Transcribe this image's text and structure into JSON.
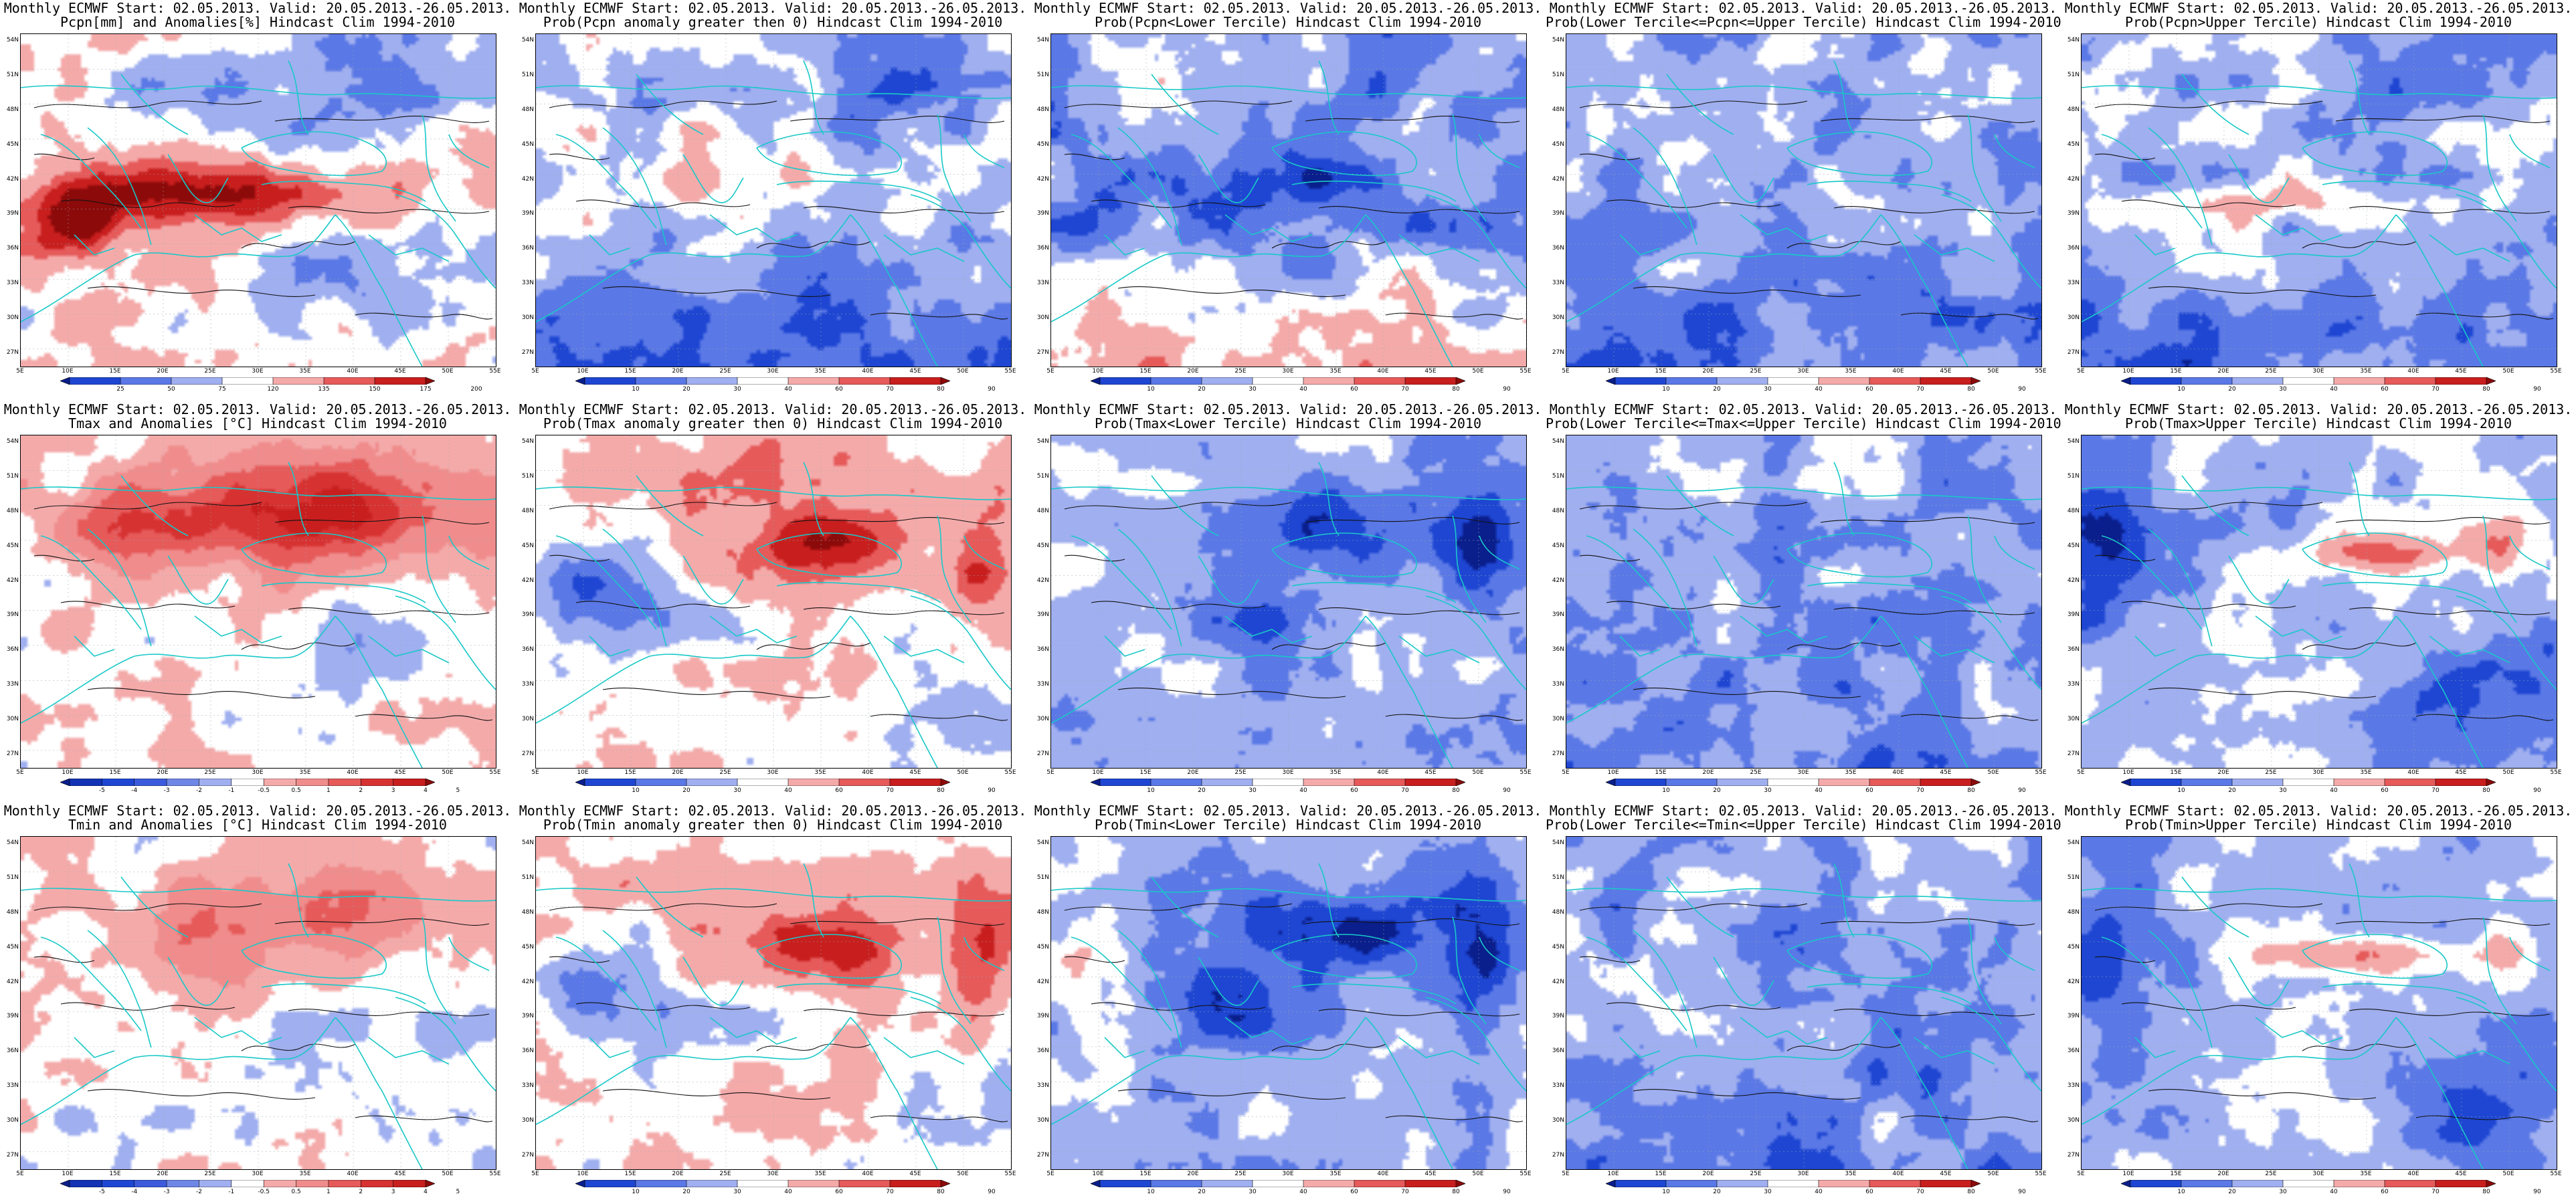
{
  "lat_labels": [
    "54N",
    "51N",
    "48N",
    "45N",
    "42N",
    "39N",
    "36N",
    "33N",
    "30N",
    "27N"
  ],
  "lon_labels": [
    "5E",
    "10E",
    "15E",
    "20E",
    "25E",
    "30E",
    "35E",
    "40E",
    "45E",
    "50E",
    "55E"
  ],
  "colorbars": {
    "pcpn_anom": {
      "labels": [
        "25",
        "50",
        "75",
        "120",
        "135",
        "150",
        "175",
        "200"
      ],
      "colors": [
        "#0a1e8c",
        "#1e46d2",
        "#5a78e6",
        "#a0aff0",
        "#ffffff",
        "#f5aaaa",
        "#e65a5a",
        "#c81e1e",
        "#8c0a0a"
      ]
    },
    "temp_anom": {
      "labels": [
        "-5",
        "-4",
        "-3",
        "-2",
        "-1",
        "-0.5",
        "0.5",
        "1",
        "2",
        "3",
        "4",
        "5"
      ],
      "colors": [
        "#0a1e8c",
        "#1432b4",
        "#1e46d2",
        "#3c5adc",
        "#6e87e6",
        "#a0aff0",
        "#ffffff",
        "#f5aaaa",
        "#f08c8c",
        "#e65a5a",
        "#d73232",
        "#c81e1e",
        "#8c0a0a"
      ]
    },
    "prob": {
      "labels": [
        "10",
        "20",
        "30",
        "40",
        "60",
        "70",
        "80",
        "90"
      ],
      "colors": [
        "#0a1e8c",
        "#1e46d2",
        "#5a78e6",
        "#a0aff0",
        "#ffffff",
        "#f5aaaa",
        "#e65a5a",
        "#c81e1e",
        "#8c0a0a"
      ]
    }
  },
  "panels": [
    {
      "title1": "Monthly ECMWF Start: 02.05.2013. Valid: 20.05.2013.-26.05.2013.",
      "title2": "Pcpn[mm] and Anomalies[%] Hindcast Clim 1994-2010",
      "colorbar": "pcpn_anom",
      "theme": "pcpn_anom"
    },
    {
      "title1": "Monthly ECMWF Start: 02.05.2013. Valid: 20.05.2013.-26.05.2013.",
      "title2": "Prob(Pcpn anomaly greater then 0) Hindcast Clim 1994-2010",
      "colorbar": "prob",
      "theme": "pcpn_pos"
    },
    {
      "title1": "Monthly ECMWF Start: 02.05.2013. Valid: 20.05.2013.-26.05.2013.",
      "title2": "Prob(Pcpn<Lower Tercile) Hindcast Clim 1994-2010",
      "colorbar": "prob",
      "theme": "pcpn_low"
    },
    {
      "title1": "Monthly ECMWF Start: 02.05.2013. Valid: 20.05.2013.-26.05.2013.",
      "title2": "Prob(Lower Tercile<=Pcpn<=Upper Tercile) Hindcast Clim 1994-2010",
      "colorbar": "prob",
      "theme": "mid"
    },
    {
      "title1": "Monthly ECMWF Start: 02.05.2013. Valid: 20.05.2013.-26.05.2013.",
      "title2": "Prob(Pcpn>Upper Tercile) Hindcast Clim 1994-2010",
      "colorbar": "prob",
      "theme": "pcpn_up"
    },
    {
      "title1": "Monthly ECMWF Start: 02.05.2013. Valid: 20.05.2013.-26.05.2013.",
      "title2": "Tmax and Anomalies [°C] Hindcast Clim 1994-2010",
      "colorbar": "temp_anom",
      "theme": "t_anom"
    },
    {
      "title1": "Monthly ECMWF Start: 02.05.2013. Valid: 20.05.2013.-26.05.2013.",
      "title2": "Prob(Tmax anomaly greater then 0) Hindcast Clim 1994-2010",
      "colorbar": "prob",
      "theme": "t_pos"
    },
    {
      "title1": "Monthly ECMWF Start: 02.05.2013. Valid: 20.05.2013.-26.05.2013.",
      "title2": "Prob(Tmax<Lower Tercile) Hindcast Clim 1994-2010",
      "colorbar": "prob",
      "theme": "t_low"
    },
    {
      "title1": "Monthly ECMWF Start: 02.05.2013. Valid: 20.05.2013.-26.05.2013.",
      "title2": "Prob(Lower Tercile<=Tmax<=Upper Tercile) Hindcast Clim 1994-2010",
      "colorbar": "prob",
      "theme": "mid"
    },
    {
      "title1": "Monthly ECMWF Start: 02.05.2013. Valid: 20.05.2013.-26.05.2013.",
      "title2": "Prob(Tmax>Upper Tercile) Hindcast Clim 1994-2010",
      "colorbar": "prob",
      "theme": "t_up"
    },
    {
      "title1": "Monthly ECMWF Start: 02.05.2013. Valid: 20.05.2013.-26.05.2013.",
      "title2": "Tmin and Anomalies [°C] Hindcast Clim 1994-2010",
      "colorbar": "temp_anom",
      "theme": "tmin_anom"
    },
    {
      "title1": "Monthly ECMWF Start: 02.05.2013. Valid: 20.05.2013.-26.05.2013.",
      "title2": "Prob(Tmin anomaly greater then 0) Hindcast Clim 1994-2010",
      "colorbar": "prob",
      "theme": "t_pos"
    },
    {
      "title1": "Monthly ECMWF Start: 02.05.2013. Valid: 20.05.2013.-26.05.2013.",
      "title2": "Prob(Tmin<Lower Tercile) Hindcast Clim 1994-2010",
      "colorbar": "prob",
      "theme": "t_low"
    },
    {
      "title1": "Monthly ECMWF Start: 02.05.2013. Valid: 20.05.2013.-26.05.2013.",
      "title2": "Prob(Lower Tercile<=Tmin<=Upper Tercile) Hindcast Clim 1994-2010",
      "colorbar": "prob",
      "theme": "mid"
    },
    {
      "title1": "Monthly ECMWF Start: 02.05.2013. Valid: 20.05.2013.-26.05.2013.",
      "title2": "Prob(Tmin>Upper Tercile) Hindcast Clim 1994-2010",
      "colorbar": "prob",
      "theme": "t_up"
    }
  ]
}
